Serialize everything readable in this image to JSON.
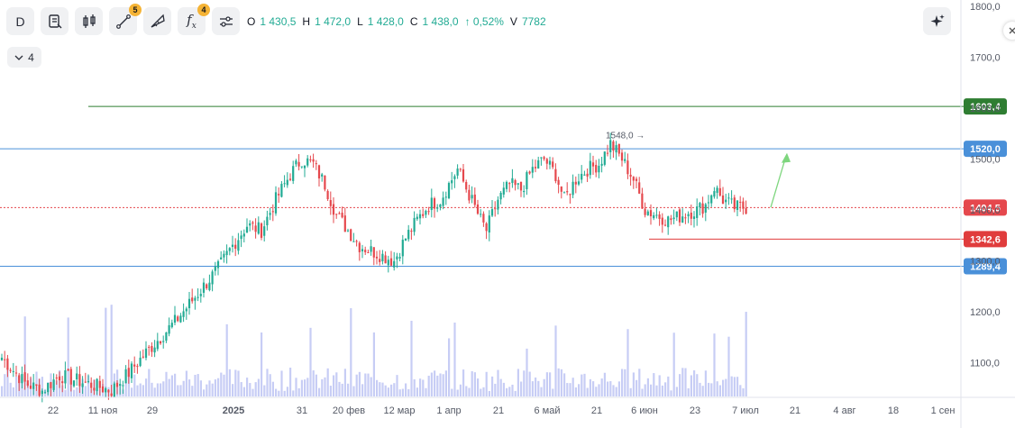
{
  "toolbar": {
    "interval_label": "D",
    "draw_badge": "5",
    "indicators_badge": "4",
    "fx_label": "f",
    "fx_sub": "x"
  },
  "ohlc": {
    "open_label": "O",
    "open": "1 430,5",
    "high_label": "H",
    "high": "1 472,0",
    "low_label": "L",
    "low": "1 428,0",
    "close_label": "C",
    "close": "1 438,0",
    "change": "↑ 0,52%",
    "volume_label": "V",
    "volume": "7782"
  },
  "collapse": {
    "count": "4"
  },
  "colors": {
    "up": "#22ab94",
    "down": "#e5484d",
    "volume": "#c7cdf5",
    "resistance_green": "#2e7d32",
    "blue_level": "#4a90d9",
    "support_red": "#e03c3c",
    "arrow": "#7ed67e",
    "axis_text": "#555a66"
  },
  "chart_data": {
    "type": "candlestick",
    "y_axis": {
      "min": 1030,
      "max": 1800,
      "ticks": [
        "1100,0",
        "1200,0",
        "1300,0",
        "1400,0",
        "1500,0",
        "1600,0",
        "1700,0",
        "1800,0"
      ],
      "tick_values": [
        1100,
        1200,
        1300,
        1400,
        1500,
        1600,
        1700,
        1800
      ],
      "position": "right"
    },
    "x_axis": {
      "tick_labels": [
        "22",
        "11 ноя",
        "29",
        "2025",
        "31",
        "20 фев",
        "12 мар",
        "1 апр",
        "21",
        "6 май",
        "21",
        "6 июн",
        "23",
        "7 июл",
        "21",
        "4 авг",
        "18",
        "1 сен"
      ]
    },
    "levels": [
      {
        "value": 1603.4,
        "label": "1603,4",
        "color": "#2e7d32",
        "style": "solid",
        "from": "start"
      },
      {
        "value": 1520.0,
        "label": "1520,0",
        "color": "#4a90d9",
        "style": "solid",
        "from": "start"
      },
      {
        "value": 1404.5,
        "label": "1404,5",
        "color": "#e5484d",
        "style": "dotted",
        "from": "start"
      },
      {
        "value": 1342.6,
        "label": "1342,6",
        "color": "#e03c3c",
        "style": "solid",
        "from": "jun"
      },
      {
        "value": 1289.4,
        "label": "1289,4",
        "color": "#4a90d9",
        "style": "solid",
        "from": "start"
      }
    ],
    "annotation": {
      "label": "1548,0 →",
      "value": 1548.0
    },
    "anchors": [
      [
        0,
        1110
      ],
      [
        8,
        1060
      ],
      [
        14,
        1045
      ],
      [
        20,
        1075
      ],
      [
        26,
        1065
      ],
      [
        32,
        1055
      ],
      [
        38,
        1045
      ],
      [
        44,
        1080
      ],
      [
        50,
        1120
      ],
      [
        55,
        1150
      ],
      [
        60,
        1180
      ],
      [
        65,
        1215
      ],
      [
        70,
        1250
      ],
      [
        75,
        1285
      ],
      [
        80,
        1330
      ],
      [
        85,
        1370
      ],
      [
        90,
        1360
      ],
      [
        95,
        1420
      ],
      [
        100,
        1470
      ],
      [
        104,
        1500
      ],
      [
        108,
        1490
      ],
      [
        112,
        1450
      ],
      [
        116,
        1390
      ],
      [
        120,
        1360
      ],
      [
        124,
        1330
      ],
      [
        128,
        1320
      ],
      [
        132,
        1310
      ],
      [
        136,
        1300
      ],
      [
        140,
        1345
      ],
      [
        144,
        1380
      ],
      [
        148,
        1410
      ],
      [
        152,
        1420
      ],
      [
        155,
        1450
      ],
      [
        158,
        1480
      ],
      [
        162,
        1430
      ],
      [
        166,
        1380
      ],
      [
        168,
        1360
      ],
      [
        172,
        1420
      ],
      [
        176,
        1450
      ],
      [
        180,
        1440
      ],
      [
        184,
        1480
      ],
      [
        188,
        1500
      ],
      [
        192,
        1470
      ],
      [
        195,
        1420
      ],
      [
        199,
        1460
      ],
      [
        203,
        1480
      ],
      [
        207,
        1490
      ],
      [
        211,
        1530
      ],
      [
        215,
        1500
      ],
      [
        219,
        1460
      ],
      [
        223,
        1400
      ],
      [
        227,
        1390
      ],
      [
        231,
        1380
      ],
      [
        234,
        1385
      ],
      [
        238,
        1395
      ],
      [
        241,
        1400
      ],
      [
        244,
        1410
      ],
      [
        247,
        1445
      ],
      [
        250,
        1420
      ],
      [
        254,
        1405
      ],
      [
        258,
        1405
      ]
    ]
  }
}
